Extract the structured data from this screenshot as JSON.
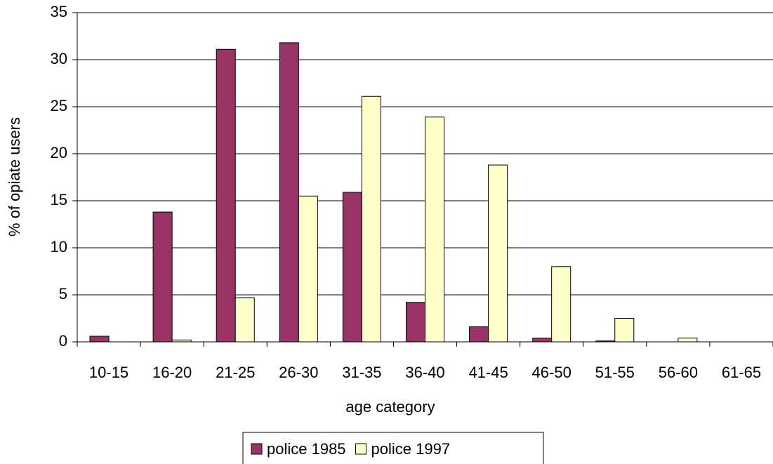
{
  "chart_data": {
    "type": "bar",
    "categories": [
      "10-15",
      "16-20",
      "21-25",
      "26-30",
      "31-35",
      "36-40",
      "41-45",
      "46-50",
      "51-55",
      "56-60",
      "61-65"
    ],
    "series": [
      {
        "name": "police 1985",
        "color": "#993366",
        "values": [
          0.6,
          13.8,
          31.1,
          31.8,
          15.9,
          4.2,
          1.6,
          0.4,
          0.1,
          0,
          0
        ]
      },
      {
        "name": "police 1997",
        "color": "#ffffcc",
        "values": [
          0,
          0.2,
          4.7,
          15.5,
          26.1,
          23.9,
          18.8,
          8.0,
          2.5,
          0.4,
          0
        ]
      }
    ],
    "x_label": "age category",
    "y_label": "% of opiate users",
    "ylim": [
      0,
      35
    ],
    "yticks": [
      0,
      5,
      10,
      15,
      20,
      25,
      30,
      35
    ],
    "grid": true,
    "legend": "bottom"
  }
}
